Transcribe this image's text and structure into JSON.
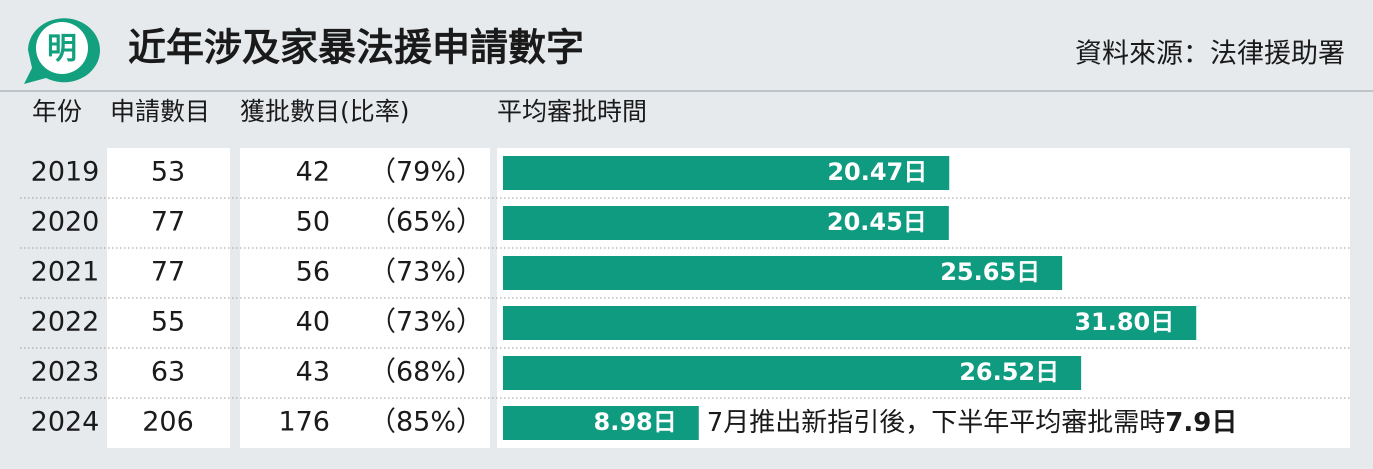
{
  "header": {
    "logo": "明",
    "title": "近年涉及家暴法援申請數字",
    "source": "資料來源：法律援助署"
  },
  "columns": [
    "年份",
    "申請數目",
    "獲批數目(比率)",
    "平均審批時間"
  ],
  "rows": [
    {
      "year": "2019",
      "applications": "53",
      "approved": "42",
      "rate": "（79%）",
      "days": 20.47,
      "days_label": "20.47日"
    },
    {
      "year": "2020",
      "applications": "77",
      "approved": "50",
      "rate": "（65%）",
      "days": 20.45,
      "days_label": "20.45日"
    },
    {
      "year": "2021",
      "applications": "77",
      "approved": "56",
      "rate": "（73%）",
      "days": 25.65,
      "days_label": "25.65日"
    },
    {
      "year": "2022",
      "applications": "55",
      "approved": "40",
      "rate": "（73%）",
      "days": 31.8,
      "days_label": "31.80日"
    },
    {
      "year": "2023",
      "applications": "63",
      "approved": "43",
      "rate": "（68%）",
      "days": 26.52,
      "days_label": "26.52日"
    },
    {
      "year": "2024",
      "applications": "206",
      "approved": "176",
      "rate": "（85%）",
      "days": 8.98,
      "days_label": "8.98日"
    }
  ],
  "note": {
    "text": "7月推出新指引後，下半年平均審批需時",
    "value": "7.9日"
  }
}
